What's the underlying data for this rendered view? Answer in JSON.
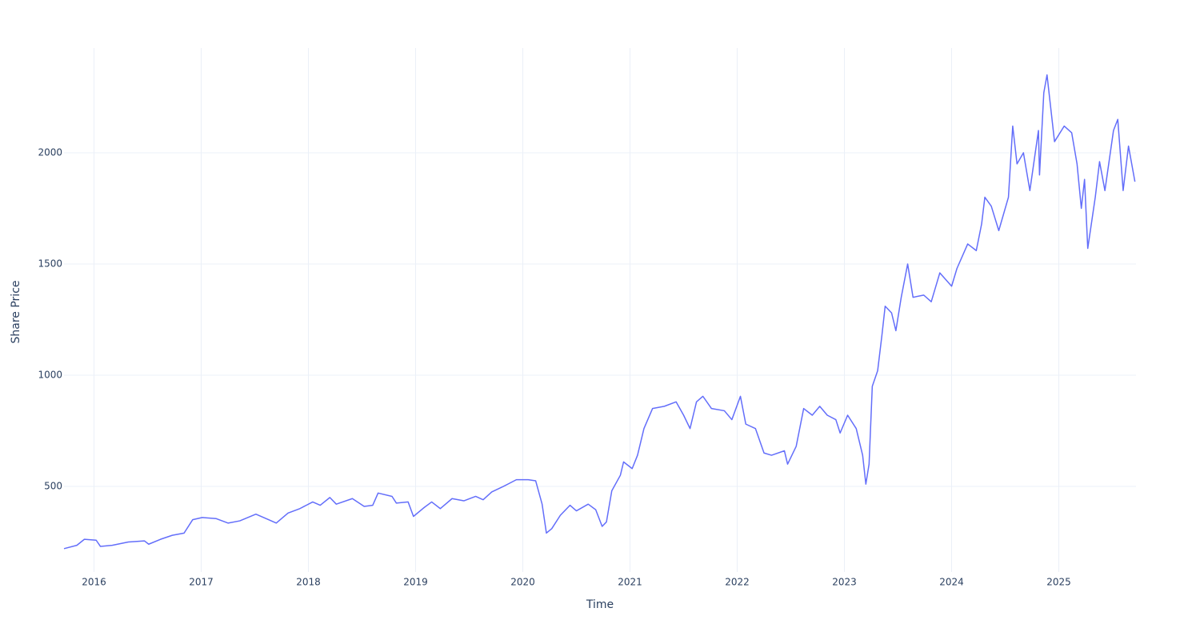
{
  "chart_data": {
    "type": "line",
    "x_label": "Time",
    "y_label": "Share Price",
    "x": [
      2015.72,
      2015.84,
      2015.91,
      2016.02,
      2016.06,
      2016.17,
      2016.32,
      2016.47,
      2016.51,
      2016.62,
      2016.73,
      2016.84,
      2016.92,
      2017.01,
      2017.14,
      2017.25,
      2017.36,
      2017.51,
      2017.63,
      2017.7,
      2017.81,
      2017.92,
      2018.04,
      2018.11,
      2018.2,
      2018.26,
      2018.41,
      2018.52,
      2018.6,
      2018.65,
      2018.78,
      2018.82,
      2018.93,
      2018.98,
      2019.08,
      2019.15,
      2019.23,
      2019.34,
      2019.45,
      2019.56,
      2019.63,
      2019.71,
      2019.82,
      2019.94,
      2020.05,
      2020.12,
      2020.18,
      2020.22,
      2020.27,
      2020.35,
      2020.44,
      2020.5,
      2020.61,
      2020.68,
      2020.74,
      2020.78,
      2020.83,
      2020.91,
      2020.94,
      2021.02,
      2021.07,
      2021.13,
      2021.21,
      2021.32,
      2021.43,
      2021.5,
      2021.56,
      2021.62,
      2021.68,
      2021.76,
      2021.88,
      2021.95,
      2022.03,
      2022.08,
      2022.17,
      2022.25,
      2022.32,
      2022.44,
      2022.47,
      2022.55,
      2022.62,
      2022.7,
      2022.77,
      2022.84,
      2022.92,
      2022.96,
      2023.03,
      2023.11,
      2023.17,
      2023.2,
      2023.23,
      2023.26,
      2023.31,
      2023.35,
      2023.38,
      2023.44,
      2023.48,
      2023.53,
      2023.59,
      2023.64,
      2023.74,
      2023.81,
      2023.89,
      2024.0,
      2024.05,
      2024.15,
      2024.23,
      2024.28,
      2024.31,
      2024.37,
      2024.44,
      2024.53,
      2024.57,
      2024.61,
      2024.67,
      2024.73,
      2024.81,
      2024.82,
      2024.86,
      2024.89,
      2024.96,
      2025.05,
      2025.12,
      2025.17,
      2025.21,
      2025.24,
      2025.27,
      2025.34,
      2025.38,
      2025.43,
      2025.51,
      2025.55,
      2025.6,
      2025.65,
      2025.71
    ],
    "series": [
      {
        "name": "Share Price",
        "color": "#636efa",
        "values": [
          220,
          235,
          262,
          258,
          230,
          235,
          250,
          255,
          240,
          262,
          280,
          290,
          350,
          360,
          355,
          335,
          345,
          375,
          350,
          335,
          380,
          400,
          430,
          415,
          450,
          420,
          445,
          410,
          415,
          470,
          455,
          425,
          430,
          365,
          405,
          430,
          400,
          445,
          435,
          455,
          440,
          475,
          500,
          530,
          530,
          525,
          420,
          290,
          310,
          370,
          415,
          390,
          420,
          395,
          320,
          340,
          480,
          550,
          610,
          580,
          640,
          760,
          850,
          860,
          880,
          820,
          760,
          880,
          905,
          850,
          840,
          800,
          905,
          780,
          760,
          650,
          640,
          660,
          600,
          680,
          850,
          820,
          860,
          820,
          800,
          740,
          820,
          760,
          640,
          510,
          600,
          950,
          1020,
          1180,
          1310,
          1280,
          1200,
          1350,
          1500,
          1350,
          1360,
          1330,
          1460,
          1400,
          1480,
          1590,
          1560,
          1680,
          1800,
          1760,
          1650,
          1800,
          2120,
          1950,
          2000,
          1830,
          2100,
          1900,
          2270,
          2350,
          2050,
          2120,
          2090,
          1950,
          1750,
          1880,
          1570,
          1800,
          1960,
          1830,
          2100,
          2150,
          1830,
          2030,
          1870
        ]
      }
    ],
    "xlim": [
      2015.72,
      2025.72
    ],
    "xticks": [
      2016,
      2017,
      2018,
      2019,
      2020,
      2021,
      2022,
      2023,
      2024,
      2025
    ],
    "ylim": [
      115,
      2471
    ],
    "yticks": [
      500,
      1000,
      1500,
      2000
    ],
    "grid": true
  }
}
